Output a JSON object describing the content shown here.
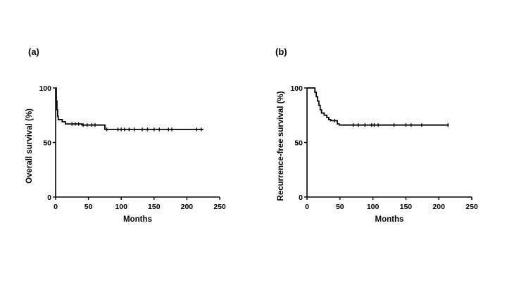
{
  "chart_data": [
    {
      "type": "line",
      "panel_label": "(a)",
      "xlabel": "Months",
      "ylabel": "Overall survival (%)",
      "xlim": [
        0,
        250
      ],
      "ylim": [
        0,
        100
      ],
      "xticks": [
        "0",
        "50",
        "100",
        "150",
        "200",
        "250"
      ],
      "yticks": [
        "0",
        "50",
        "100"
      ],
      "grid": false,
      "series": [
        {
          "steps": [
            [
              0,
              100
            ],
            [
              1,
              88
            ],
            [
              2,
              80
            ],
            [
              3,
              74
            ],
            [
              4,
              71
            ],
            [
              10,
              69
            ],
            [
              15,
              67
            ],
            [
              40,
              66
            ],
            [
              75,
              62
            ],
            [
              225,
              62
            ]
          ],
          "censored": [
            [
              25,
              67
            ],
            [
              30,
              67
            ],
            [
              35,
              67
            ],
            [
              42,
              66
            ],
            [
              48,
              66
            ],
            [
              55,
              66
            ],
            [
              60,
              66
            ],
            [
              78,
              62
            ],
            [
              95,
              62
            ],
            [
              100,
              62
            ],
            [
              105,
              62
            ],
            [
              112,
              62
            ],
            [
              120,
              62
            ],
            [
              132,
              62
            ],
            [
              140,
              62
            ],
            [
              150,
              62
            ],
            [
              158,
              62
            ],
            [
              172,
              62
            ],
            [
              177,
              62
            ],
            [
              215,
              62
            ],
            [
              222,
              62
            ]
          ]
        }
      ]
    },
    {
      "type": "line",
      "panel_label": "(b)",
      "xlabel": "Months",
      "ylabel": "Recurrence-free survival (%)",
      "xlim": [
        0,
        250
      ],
      "ylim": [
        0,
        100
      ],
      "xticks": [
        "0",
        "50",
        "100",
        "150",
        "200",
        "250"
      ],
      "yticks": [
        "0",
        "50",
        "100"
      ],
      "grid": false,
      "series": [
        {
          "steps": [
            [
              0,
              100
            ],
            [
              8,
              100
            ],
            [
              12,
              96
            ],
            [
              14,
              92
            ],
            [
              16,
              88
            ],
            [
              18,
              84
            ],
            [
              20,
              80
            ],
            [
              22,
              77
            ],
            [
              26,
              75
            ],
            [
              30,
              73
            ],
            [
              33,
              71
            ],
            [
              36,
              70
            ],
            [
              46,
              67
            ],
            [
              49,
              66
            ],
            [
              215,
              66
            ]
          ],
          "censored": [
            [
              42,
              70
            ],
            [
              70,
              66
            ],
            [
              78,
              66
            ],
            [
              88,
              66
            ],
            [
              98,
              66
            ],
            [
              102,
              66
            ],
            [
              108,
              66
            ],
            [
              132,
              66
            ],
            [
              150,
              66
            ],
            [
              158,
              66
            ],
            [
              174,
              66
            ],
            [
              214,
              66
            ]
          ]
        }
      ]
    }
  ]
}
